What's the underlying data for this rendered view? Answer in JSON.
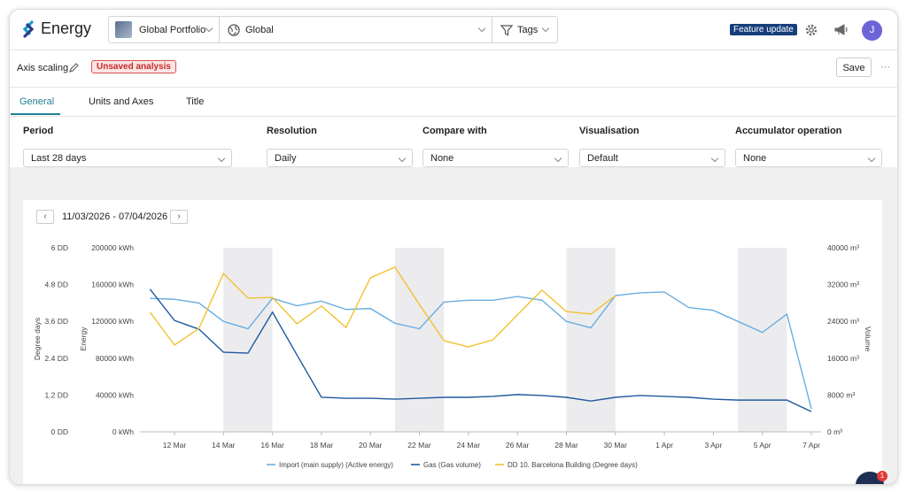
{
  "header": {
    "logo": "Energy",
    "portfolio": "Global Portfolio",
    "scope": "Global",
    "tags": "Tags",
    "feature_badge": "Feature update",
    "avatar": "J"
  },
  "toolbar": {
    "title": "Axis scaling",
    "status": "Unsaved analysis",
    "save": "Save",
    "more": "···"
  },
  "tabs": [
    "General",
    "Units and Axes",
    "Title"
  ],
  "filters": [
    {
      "label": "Period",
      "value": "Last 28 days"
    },
    {
      "label": "Resolution",
      "value": "Daily"
    },
    {
      "label": "Compare with",
      "value": "None"
    },
    {
      "label": "Visualisation",
      "value": "Default"
    },
    {
      "label": "Accumulator operation",
      "value": "None"
    }
  ],
  "date_range": "11/03/2026 - 07/04/2026",
  "chat_badge": "1",
  "chart_data": {
    "type": "line",
    "categories": [
      null,
      "12 Mar",
      null,
      "14 Mar",
      null,
      "16 Mar",
      null,
      "18 Mar",
      null,
      "20 Mar",
      null,
      "22 Mar",
      null,
      "24 Mar",
      null,
      "26 Mar",
      null,
      "28 Mar",
      null,
      "30 Mar",
      null,
      "1 Apr",
      null,
      "3 Apr",
      null,
      "5 Apr",
      null,
      "7 Apr"
    ],
    "y_label": "Energy",
    "y2_label": "Volume",
    "y3_label": "Degree days",
    "ylim": [
      0,
      200000
    ],
    "yticks": [
      {
        "value": 0,
        "label": "0 kWh"
      },
      {
        "value": 40000,
        "label": "40000 kWh"
      },
      {
        "value": 80000,
        "label": "80000 kWh"
      },
      {
        "value": 120000,
        "label": "120000 kWh"
      },
      {
        "value": 160000,
        "label": "160000 kWh"
      },
      {
        "value": 200000,
        "label": "200000 kWh"
      }
    ],
    "y2lim": [
      0,
      40000
    ],
    "y2ticks": [
      {
        "value": 0,
        "label": "0 m³"
      },
      {
        "value": 8000,
        "label": "8000 m³"
      },
      {
        "value": 16000,
        "label": "16000 m³"
      },
      {
        "value": 24000,
        "label": "24000 m³"
      },
      {
        "value": 32000,
        "label": "32000 m³"
      },
      {
        "value": 40000,
        "label": "40000 m³"
      }
    ],
    "y3lim": [
      0,
      6
    ],
    "y3ticks": [
      {
        "value": 0,
        "label": "0 DD"
      },
      {
        "value": 1.2,
        "label": "1.2 DD"
      },
      {
        "value": 2.4,
        "label": "2.4 DD"
      },
      {
        "value": 3.6,
        "label": "3.6 DD"
      },
      {
        "value": 4.8,
        "label": "4.8 DD"
      },
      {
        "value": 6,
        "label": "6 DD"
      }
    ],
    "grid": false,
    "series": [
      {
        "name": "Import (main supply) (Active energy)",
        "color": "#6aaee0",
        "axis": "y",
        "values": [
          145000,
          144000,
          140000,
          120000,
          112000,
          145000,
          137000,
          142000,
          133000,
          134000,
          118000,
          112000,
          141000,
          143000,
          143000,
          147000,
          143000,
          120000,
          113000,
          148000,
          151000,
          152000,
          135000,
          132000,
          120000,
          108000,
          128000,
          25000
        ]
      },
      {
        "name": "Gas (Gas volume)",
        "color": "#1f5a9e",
        "axis": "y2",
        "values": [
          31000,
          24200,
          22300,
          17300,
          17100,
          26000,
          16700,
          7500,
          7300,
          7300,
          7100,
          7300,
          7500,
          7500,
          7700,
          8100,
          7900,
          7500,
          6700,
          7500,
          7900,
          7700,
          7500,
          7100,
          6900,
          6900,
          6900,
          4400
        ]
      },
      {
        "name": "DD 10. Barcelona Building (Degree days)",
        "color": "#f2c230",
        "axis": "y3",
        "values": [
          3.9,
          2.83,
          3.37,
          5.16,
          4.36,
          4.38,
          3.52,
          4.1,
          3.4,
          5.02,
          5.37,
          4.15,
          2.97,
          2.77,
          3.0,
          3.81,
          4.62,
          3.92,
          3.84,
          4.44,
          null,
          null,
          null,
          null,
          null,
          null,
          null,
          null
        ]
      }
    ]
  }
}
